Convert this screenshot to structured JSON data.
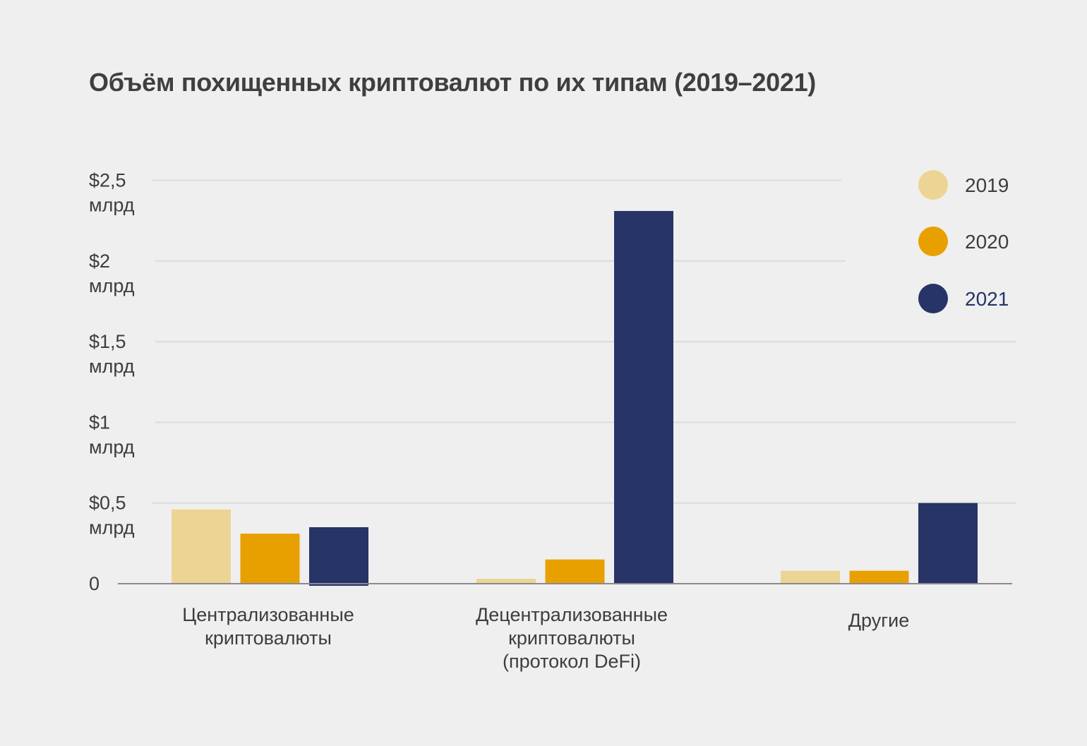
{
  "chart_data": {
    "type": "bar",
    "title": "Объём похищенных криптовалют по их типам (2019–2021)",
    "xlabel": "",
    "ylabel": "",
    "ylim": [
      0,
      2.5
    ],
    "unit": "млрд долларов",
    "grid": true,
    "legend_position": "top-right",
    "y_ticks": [
      {
        "value": 0,
        "label_line1": "0",
        "label_line2": ""
      },
      {
        "value": 0.5,
        "label_line1": "$0,5",
        "label_line2": "млрд"
      },
      {
        "value": 1.0,
        "label_line1": "$1",
        "label_line2": "млрд"
      },
      {
        "value": 1.5,
        "label_line1": "$1,5",
        "label_line2": "млрд"
      },
      {
        "value": 2.0,
        "label_line1": "$2",
        "label_line2": "млрд"
      },
      {
        "value": 2.5,
        "label_line1": "$2,5",
        "label_line2": "млрд"
      }
    ],
    "categories": [
      [
        "Централизованные",
        "криптовалюты"
      ],
      [
        "Децентрализованные",
        "криптовалюты",
        "(протокол DeFi)"
      ],
      [
        "Другие"
      ]
    ],
    "series": [
      {
        "name": "2019",
        "color": "#ecd594",
        "label_color": "#3d3d3d",
        "values": [
          0.46,
          0.03,
          0.08
        ]
      },
      {
        "name": "2020",
        "color": "#e8a000",
        "label_color": "#3d3d3d",
        "values": [
          0.31,
          0.15,
          0.08
        ]
      },
      {
        "name": "2021",
        "color": "#263466",
        "label_color": "#263466",
        "values": [
          0.35,
          2.31,
          0.5
        ]
      }
    ]
  }
}
